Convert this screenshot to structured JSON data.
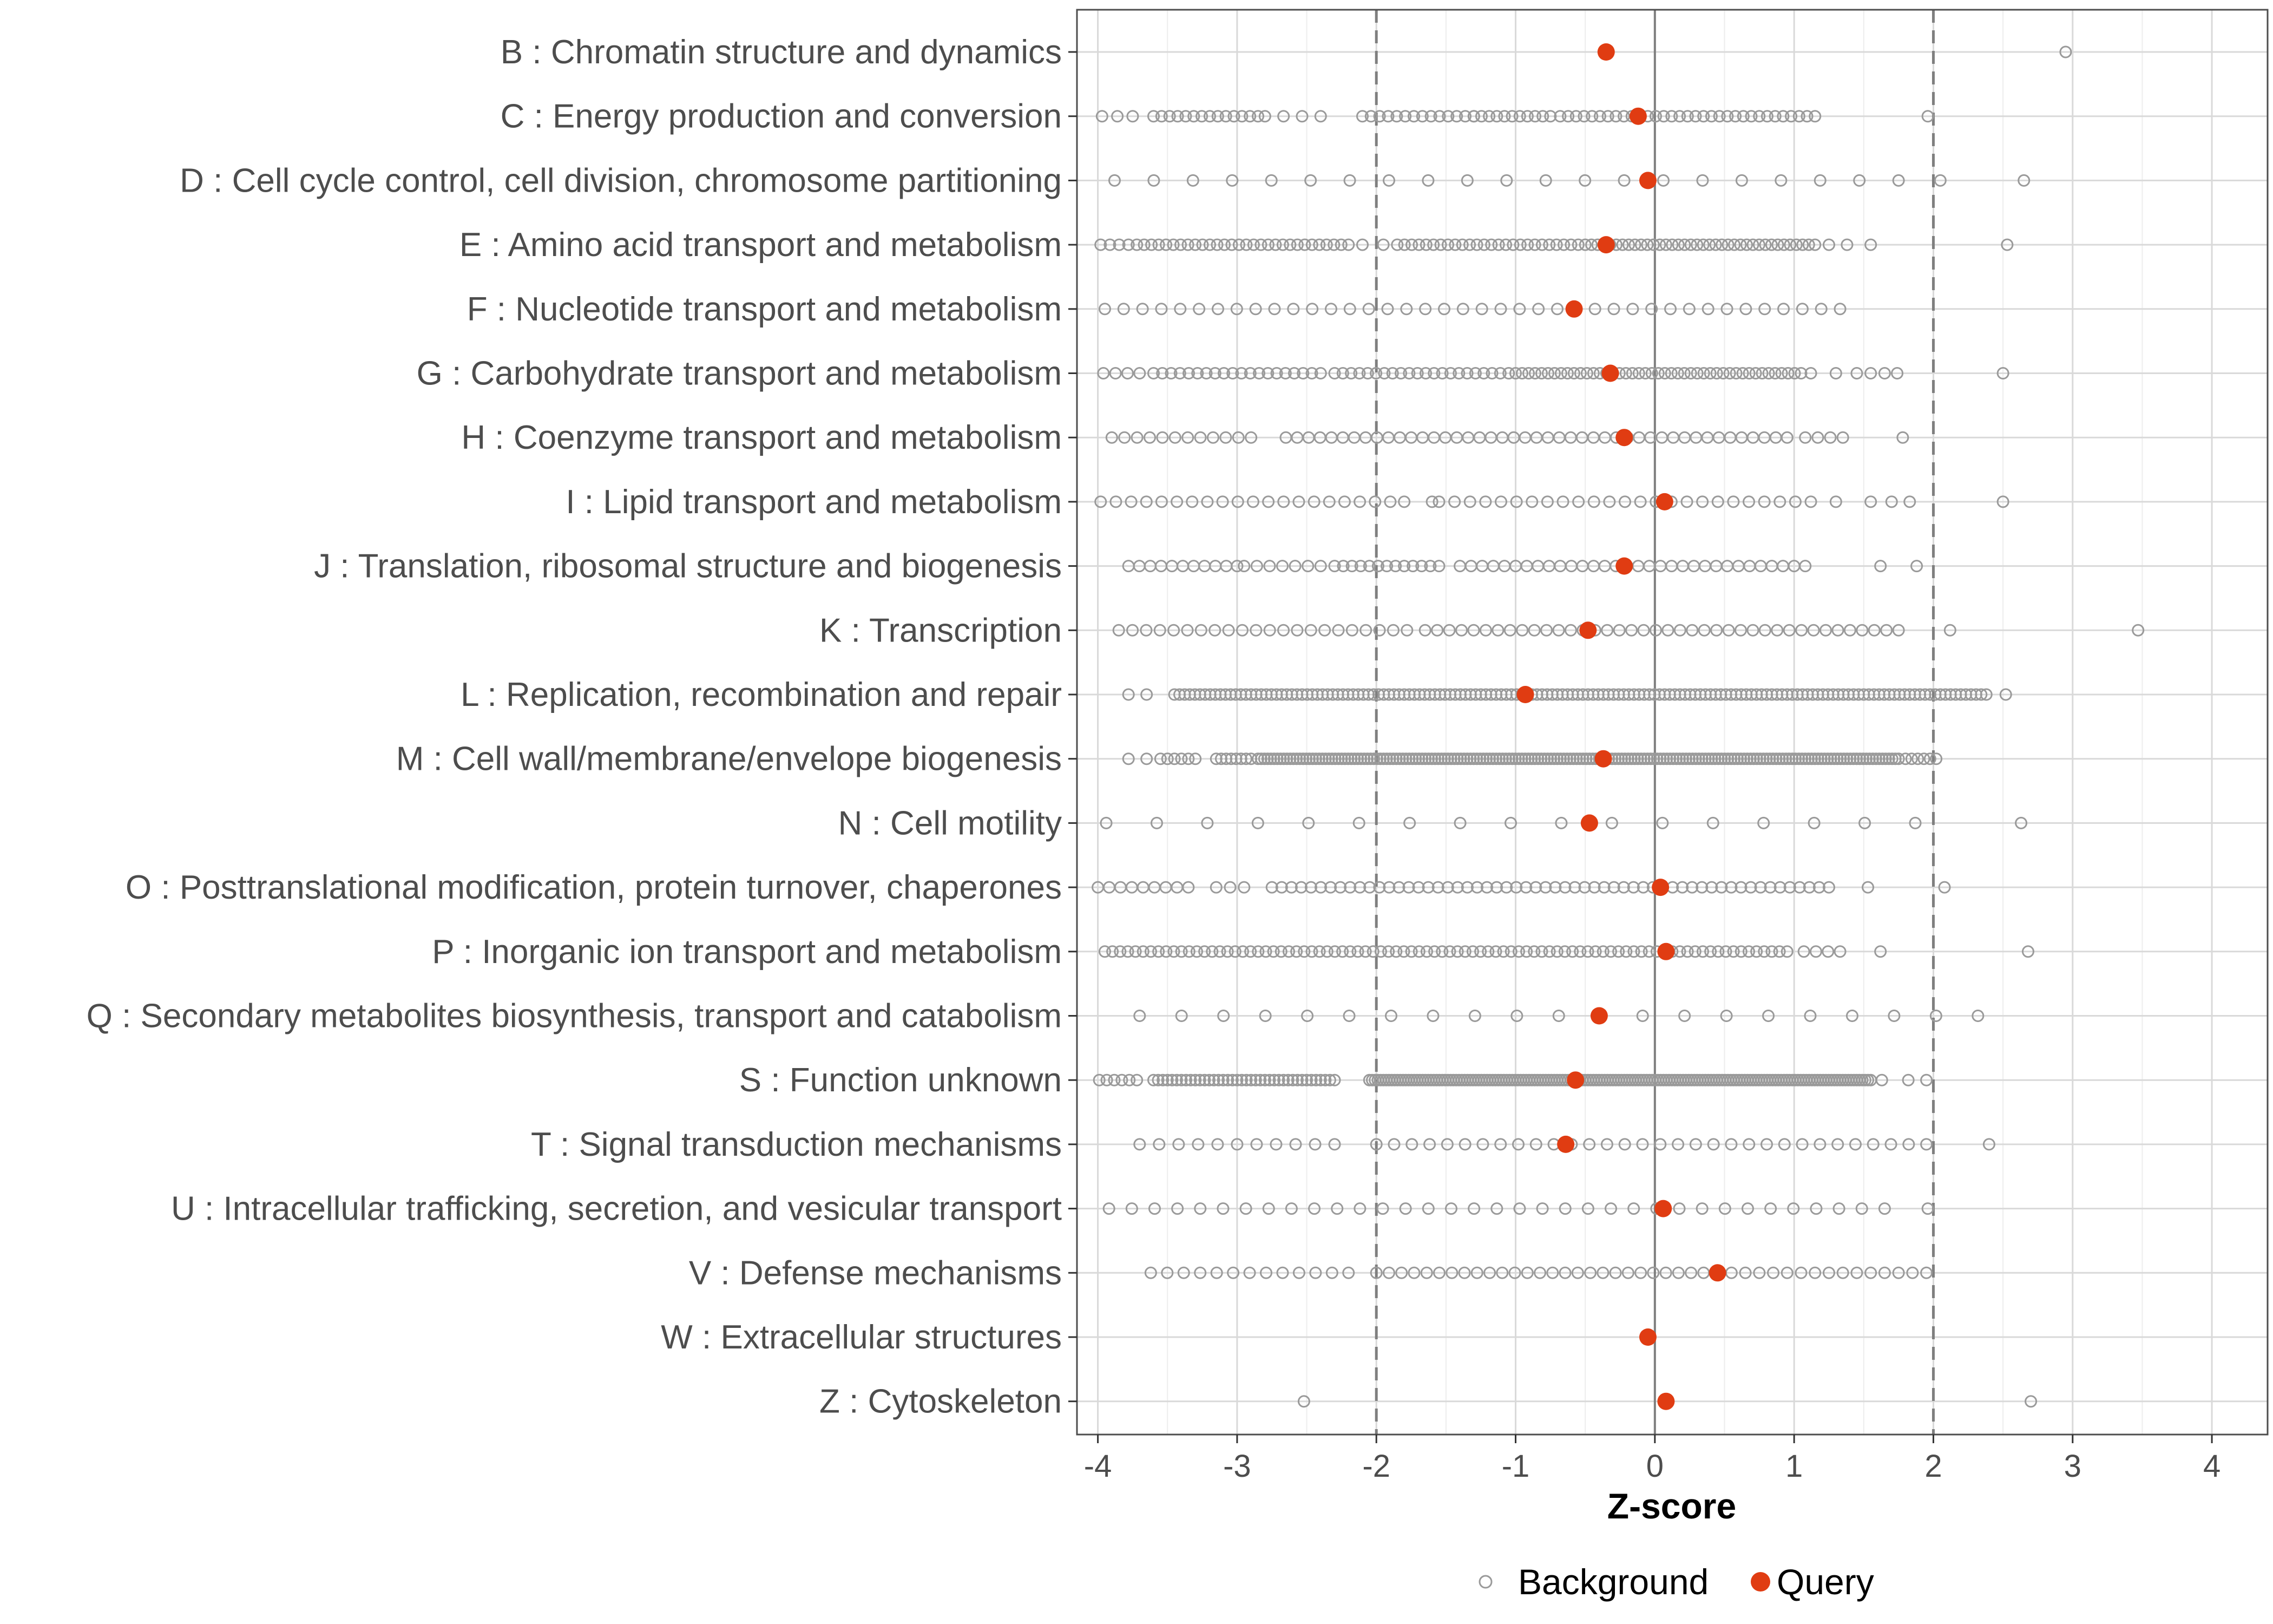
{
  "chart_data": {
    "type": "scatter",
    "xlabel": "Z-score",
    "ylabel": "",
    "xlim": [
      -4.15,
      4.4
    ],
    "xticks": [
      -4,
      -3,
      -2,
      -1,
      0,
      1,
      2,
      3,
      4
    ],
    "reference_lines": [
      {
        "x": -2,
        "style": "dashed"
      },
      {
        "x": 0,
        "style": "solid"
      },
      {
        "x": 2,
        "style": "dashed"
      }
    ],
    "grid": true,
    "legend": {
      "position": "bottom",
      "entries": [
        {
          "label": "Background",
          "marker": "open-circle",
          "color": "#9a9a9a"
        },
        {
          "label": "Query",
          "marker": "filled-circle",
          "color": "#e03c12"
        }
      ]
    },
    "categories": [
      {
        "label": "B : Chromatin structure and dynamics",
        "query": -0.35,
        "background": {
          "points": [
            2.95
          ]
        }
      },
      {
        "label": "C : Energy production and conversion",
        "query": -0.12,
        "background": {
          "segments": [
            [
              -3.97,
              -3.75,
              3
            ],
            [
              -3.6,
              -2.85,
              14
            ],
            [
              -2.8,
              -2.4,
              4
            ],
            [
              -2.1,
              -1.3,
              14
            ],
            [
              -1.3,
              -0.75,
              11
            ],
            [
              -0.68,
              1.15,
              33
            ]
          ],
          "points": [
            1.96
          ]
        }
      },
      {
        "label": "D : Cell cycle control, cell division, chromosome partitioning",
        "query": -0.05,
        "background": {
          "segments": [
            [
              -3.88,
              1.75,
              21
            ]
          ],
          "points": [
            2.05,
            2.65
          ]
        }
      },
      {
        "label": "E : Amino acid transport and metabolism",
        "query": -0.35,
        "background": {
          "segments": [
            [
              -3.98,
              -3.78,
              4
            ],
            [
              -3.72,
              -2.2,
              30
            ],
            [
              -2.1,
              -1.95,
              2
            ],
            [
              -1.85,
              -0.55,
              26
            ],
            [
              -0.5,
              1.15,
              38
            ]
          ],
          "points": [
            1.25,
            1.38,
            1.55,
            2.53
          ]
        }
      },
      {
        "label": "F : Nucleotide transport and metabolism",
        "query": -0.58,
        "background": {
          "segments": [
            [
              -3.95,
              1.33,
              40
            ]
          ]
        }
      },
      {
        "label": "G : Carbohydrate transport and metabolism",
        "query": -0.32,
        "background": {
          "segments": [
            [
              -3.96,
              -3.7,
              4
            ],
            [
              -3.6,
              -2.4,
              20
            ],
            [
              -2.3,
              -1.05,
              22
            ],
            [
              -1.0,
              1.05,
              45
            ]
          ],
          "points": [
            1.12,
            1.3,
            1.45,
            1.55,
            1.65,
            1.74,
            2.5
          ]
        }
      },
      {
        "label": "H : Coenzyme transport and metabolism",
        "query": -0.22,
        "background": {
          "segments": [
            [
              -3.9,
              -2.9,
              12
            ],
            [
              -2.65,
              0.95,
              45
            ],
            [
              1.08,
              1.35,
              4
            ]
          ],
          "points": [
            1.78
          ]
        }
      },
      {
        "label": "I : Lipid transport and metabolism",
        "query": 0.07,
        "background": {
          "segments": [
            [
              -3.98,
              -1.9,
              20
            ],
            [
              -1.8,
              -1.6,
              2
            ],
            [
              -1.55,
              1.12,
              25
            ]
          ],
          "points": [
            1.3,
            1.55,
            1.7,
            1.83,
            2.5
          ]
        }
      },
      {
        "label": "J : Translation, ribosomal structure and biogenesis",
        "query": -0.22,
        "background": {
          "segments": [
            [
              -3.78,
              -3.0,
              11
            ],
            [
              -2.95,
              -2.4,
              7
            ],
            [
              -2.3,
              -1.55,
              13
            ],
            [
              -1.4,
              1.08,
              32
            ]
          ],
          "points": [
            1.62,
            1.88
          ]
        }
      },
      {
        "label": "K : Transcription",
        "query": -0.48,
        "background": {
          "segments": [
            [
              -3.85,
              -1.78,
              22
            ],
            [
              -1.65,
              1.75,
              40
            ]
          ],
          "points": [
            2.12,
            3.47
          ]
        }
      },
      {
        "label": "L : Replication, recombination and repair",
        "query": -0.93,
        "background": {
          "segments": [
            [
              -3.78,
              -3.65,
              2
            ],
            [
              -3.45,
              2.38,
              160
            ]
          ],
          "points": [
            2.52
          ]
        }
      },
      {
        "label": "M : Cell wall/membrane/envelope biogenesis",
        "query": -0.37,
        "background": {
          "segments": [
            [
              -3.78,
              -3.65,
              2
            ],
            [
              -3.55,
              -3.3,
              6
            ],
            [
              -3.15,
              -2.9,
              8
            ],
            [
              -2.85,
              1.75,
              200
            ],
            [
              1.8,
              2.02,
              6
            ]
          ]
        }
      },
      {
        "label": "N : Cell motility",
        "query": -0.47,
        "background": {
          "segments": [
            [
              -3.94,
              1.87,
              17
            ]
          ],
          "points": [
            2.63
          ]
        }
      },
      {
        "label": "O : Posttranslational modification, protein turnover, chaperones",
        "query": 0.04,
        "background": {
          "segments": [
            [
              -4.0,
              -3.35,
              9
            ],
            [
              -3.15,
              -2.95,
              3
            ],
            [
              -2.75,
              1.25,
              58
            ]
          ],
          "points": [
            1.53,
            2.08
          ]
        }
      },
      {
        "label": "P : Inorganic ion transport and metabolism",
        "query": 0.08,
        "background": {
          "segments": [
            [
              -3.95,
              0.95,
              90
            ],
            [
              1.07,
              1.33,
              4
            ]
          ],
          "points": [
            1.62,
            2.68
          ]
        }
      },
      {
        "label": "Q : Secondary metabolites biosynthesis, transport and catabolism",
        "query": -0.4,
        "background": {
          "segments": [
            [
              -3.7,
              2.32,
              21
            ]
          ]
        }
      },
      {
        "label": "S : Function unknown",
        "query": -0.57,
        "background": {
          "segments": [
            [
              -3.99,
              -3.72,
              6
            ],
            [
              -3.6,
              -2.3,
              40
            ],
            [
              -2.05,
              1.55,
              180
            ]
          ],
          "points": [
            1.63,
            1.82,
            1.95
          ]
        }
      },
      {
        "label": "T : Signal transduction mechanisms",
        "query": -0.64,
        "background": {
          "segments": [
            [
              -3.7,
              -2.3,
              11
            ],
            [
              -2.0,
              1.95,
              32
            ]
          ],
          "points": [
            2.4
          ]
        }
      },
      {
        "label": "U : Intracellular trafficking, secretion, and vesicular transport",
        "query": 0.06,
        "background": {
          "segments": [
            [
              -3.92,
              1.65,
              35
            ]
          ],
          "points": [
            1.96
          ]
        }
      },
      {
        "label": "V : Defense mechanisms",
        "query": 0.45,
        "background": {
          "segments": [
            [
              -3.62,
              -2.2,
              13
            ],
            [
              -2.0,
              0.35,
              27
            ],
            [
              0.55,
              1.95,
              15
            ]
          ]
        }
      },
      {
        "label": "W : Extracellular structures",
        "query": -0.05,
        "background": {}
      },
      {
        "label": "Z : Cytoskeleton",
        "query": 0.08,
        "background": {
          "points": [
            -2.52,
            2.7
          ]
        }
      }
    ]
  }
}
